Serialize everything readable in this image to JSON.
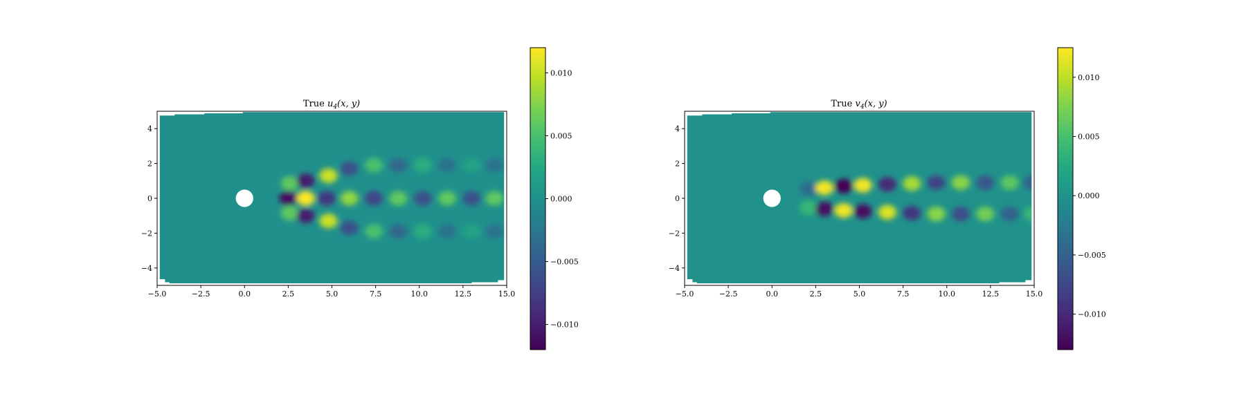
{
  "colors": {
    "background": "#ffffff",
    "colormap": "viridis",
    "field_base": "#21918c",
    "cylinder": "#ffffff"
  },
  "chart_data": [
    {
      "type": "heatmap",
      "title": "True u₄(x, y)",
      "title_prefix": "True ",
      "title_var": "u",
      "title_sub": "4",
      "title_args": "(x, y)",
      "xlim": [
        -5.0,
        15.0
      ],
      "ylim": [
        -5.0,
        5.0
      ],
      "xticks": [
        -5.0,
        -2.5,
        0.0,
        2.5,
        5.0,
        7.5,
        10.0,
        12.5,
        15.0
      ],
      "xtick_labels": [
        "−5.0",
        "−2.5",
        "0.0",
        "2.5",
        "5.0",
        "7.5",
        "10.0",
        "12.5",
        "15.0"
      ],
      "yticks": [
        -4,
        -2,
        0,
        2,
        4
      ],
      "ytick_labels": [
        "−4",
        "−2",
        "0",
        "2",
        "4"
      ],
      "colorbar": {
        "vmin": -0.012,
        "vmax": 0.012,
        "ticks": [
          -0.01,
          -0.005,
          0.0,
          0.005,
          0.01
        ],
        "tick_labels": [
          "−0.010",
          "−0.005",
          "0.000",
          "0.005",
          "0.010"
        ]
      },
      "cylinder": {
        "x": 0.0,
        "y": 0.0,
        "r": 0.5
      },
      "blobs": [
        {
          "x": 2.5,
          "y": 0.0,
          "v": -0.011
        },
        {
          "x": 3.5,
          "y": 0.0,
          "v": 0.012
        },
        {
          "x": 2.6,
          "y": 0.85,
          "v": 0.006
        },
        {
          "x": 2.6,
          "y": -0.85,
          "v": 0.006
        },
        {
          "x": 3.5,
          "y": 1.0,
          "v": -0.01
        },
        {
          "x": 3.5,
          "y": -1.0,
          "v": -0.01
        },
        {
          "x": 4.7,
          "y": 0.0,
          "v": -0.008
        },
        {
          "x": 4.8,
          "y": 1.3,
          "v": 0.01
        },
        {
          "x": 4.8,
          "y": -1.3,
          "v": 0.01
        },
        {
          "x": 6.0,
          "y": 0.0,
          "v": 0.008
        },
        {
          "x": 6.0,
          "y": 1.7,
          "v": -0.006
        },
        {
          "x": 6.0,
          "y": -1.7,
          "v": -0.006
        },
        {
          "x": 7.4,
          "y": 0.0,
          "v": -0.007
        },
        {
          "x": 7.4,
          "y": 1.9,
          "v": 0.005
        },
        {
          "x": 7.4,
          "y": -1.9,
          "v": 0.005
        },
        {
          "x": 8.8,
          "y": 0.0,
          "v": 0.006
        },
        {
          "x": 8.8,
          "y": 1.9,
          "v": -0.004
        },
        {
          "x": 8.8,
          "y": -1.9,
          "v": -0.004
        },
        {
          "x": 10.2,
          "y": 0.0,
          "v": -0.006
        },
        {
          "x": 10.2,
          "y": 1.9,
          "v": 0.003
        },
        {
          "x": 10.2,
          "y": -1.9,
          "v": 0.003
        },
        {
          "x": 11.6,
          "y": 0.0,
          "v": 0.006
        },
        {
          "x": 11.6,
          "y": 1.9,
          "v": -0.003
        },
        {
          "x": 11.6,
          "y": -1.9,
          "v": -0.003
        },
        {
          "x": 13.0,
          "y": 0.0,
          "v": -0.006
        },
        {
          "x": 13.0,
          "y": 1.9,
          "v": 0.002
        },
        {
          "x": 13.0,
          "y": -1.9,
          "v": 0.002
        },
        {
          "x": 14.3,
          "y": 0.0,
          "v": 0.006
        },
        {
          "x": 14.3,
          "y": 1.9,
          "v": -0.003
        },
        {
          "x": 14.3,
          "y": -1.9,
          "v": -0.003
        }
      ]
    },
    {
      "type": "heatmap",
      "title": "True v₄(x, y)",
      "title_prefix": "True ",
      "title_var": "v",
      "title_sub": "4",
      "title_args": "(x, y)",
      "xlim": [
        -5.0,
        15.0
      ],
      "ylim": [
        -5.0,
        5.0
      ],
      "xticks": [
        -5.0,
        -2.5,
        0.0,
        2.5,
        5.0,
        7.5,
        10.0,
        12.5,
        15.0
      ],
      "xtick_labels": [
        "−5.0",
        "−2.5",
        "0.0",
        "2.5",
        "5.0",
        "7.5",
        "10.0",
        "12.5",
        "15.0"
      ],
      "yticks": [
        -4,
        -2,
        0,
        2,
        4
      ],
      "ytick_labels": [
        "−4",
        "−2",
        "0",
        "2",
        "4"
      ],
      "colorbar": {
        "vmin": -0.013,
        "vmax": 0.0125,
        "ticks": [
          -0.01,
          -0.005,
          0.0,
          0.005,
          0.01
        ],
        "tick_labels": [
          "−0.010",
          "−0.005",
          "0.000",
          "0.005",
          "0.010"
        ]
      },
      "cylinder": {
        "x": 0.0,
        "y": 0.0,
        "r": 0.5
      },
      "blobs": [
        {
          "x": 2.1,
          "y": 0.55,
          "v": -0.004
        },
        {
          "x": 2.1,
          "y": -0.55,
          "v": 0.004
        },
        {
          "x": 3.0,
          "y": 0.6,
          "v": 0.012
        },
        {
          "x": 3.0,
          "y": -0.6,
          "v": -0.012
        },
        {
          "x": 4.1,
          "y": 0.7,
          "v": -0.013
        },
        {
          "x": 4.1,
          "y": -0.7,
          "v": 0.012
        },
        {
          "x": 5.2,
          "y": 0.75,
          "v": 0.012
        },
        {
          "x": 5.2,
          "y": -0.75,
          "v": -0.012
        },
        {
          "x": 6.6,
          "y": 0.8,
          "v": -0.01
        },
        {
          "x": 6.6,
          "y": -0.8,
          "v": 0.011
        },
        {
          "x": 8.0,
          "y": 0.85,
          "v": 0.009
        },
        {
          "x": 8.0,
          "y": -0.85,
          "v": -0.009
        },
        {
          "x": 9.4,
          "y": 0.9,
          "v": -0.008
        },
        {
          "x": 9.4,
          "y": -0.9,
          "v": 0.008
        },
        {
          "x": 10.8,
          "y": 0.9,
          "v": 0.008
        },
        {
          "x": 10.8,
          "y": -0.9,
          "v": -0.007
        },
        {
          "x": 12.2,
          "y": 0.9,
          "v": -0.006
        },
        {
          "x": 12.2,
          "y": -0.9,
          "v": 0.007
        },
        {
          "x": 13.6,
          "y": 0.9,
          "v": 0.006
        },
        {
          "x": 13.6,
          "y": -0.9,
          "v": -0.005
        },
        {
          "x": 14.9,
          "y": 0.9,
          "v": -0.005
        },
        {
          "x": 14.9,
          "y": -0.9,
          "v": 0.004
        }
      ]
    }
  ]
}
